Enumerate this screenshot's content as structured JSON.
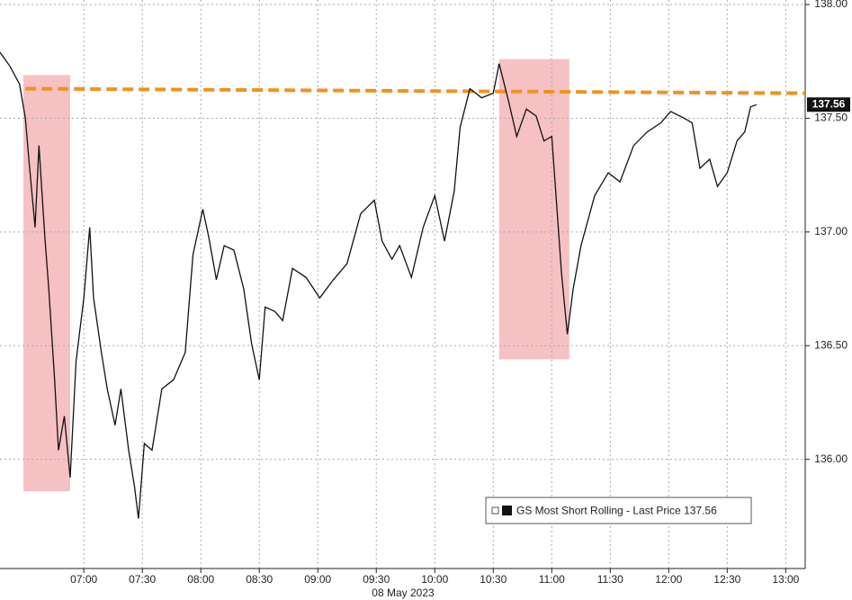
{
  "chart_data": {
    "type": "line",
    "xlabel": "08 May 2023",
    "x": [
      "06:17",
      "06:22",
      "06:27",
      "06:30",
      "06:32",
      "06:35",
      "06:37",
      "06:40",
      "06:42",
      "06:45",
      "06:47",
      "06:50",
      "06:53",
      "06:56",
      "07:00",
      "07:03",
      "07:05",
      "07:09",
      "07:12",
      "07:16",
      "07:19",
      "07:23",
      "07:26",
      "07:28",
      "07:31",
      "07:35",
      "07:40",
      "07:46",
      "07:52",
      "07:56",
      "08:01",
      "08:04",
      "08:08",
      "08:12",
      "08:17",
      "08:22",
      "08:26",
      "08:30",
      "08:33",
      "08:38",
      "08:42",
      "08:47",
      "08:54",
      "09:01",
      "09:08",
      "09:15",
      "09:22",
      "09:29",
      "09:33",
      "09:38",
      "09:42",
      "09:48",
      "09:54",
      "10:00",
      "10:05",
      "10:10",
      "10:13",
      "10:18",
      "10:24",
      "10:30",
      "10:33",
      "10:38",
      "10:42",
      "10:47",
      "10:52",
      "10:56",
      "11:00",
      "11:03",
      "11:05",
      "11:08",
      "11:11",
      "11:15",
      "11:22",
      "11:29",
      "11:35",
      "11:42",
      "11:49",
      "11:56",
      "12:01",
      "12:08",
      "12:12",
      "12:16",
      "12:21",
      "12:25",
      "12:30",
      "12:35",
      "12:39",
      "12:42",
      "12:45"
    ],
    "series": [
      {
        "name": "GS Most Short Rolling - Last Price 137.56",
        "color": "#111111",
        "values": [
          137.79,
          137.73,
          137.65,
          137.5,
          137.3,
          137.02,
          137.38,
          136.98,
          136.75,
          136.35,
          136.04,
          136.19,
          135.92,
          136.43,
          136.71,
          137.02,
          136.71,
          136.47,
          136.31,
          136.15,
          136.31,
          136.04,
          135.88,
          135.74,
          136.07,
          136.04,
          136.31,
          136.35,
          136.47,
          136.9,
          137.1,
          136.98,
          136.79,
          136.94,
          136.92,
          136.75,
          136.51,
          136.35,
          136.67,
          136.65,
          136.61,
          136.84,
          136.8,
          136.71,
          136.79,
          136.86,
          137.08,
          137.14,
          136.96,
          136.88,
          136.94,
          136.8,
          137.02,
          137.16,
          136.96,
          137.18,
          137.46,
          137.63,
          137.59,
          137.61,
          137.74,
          137.57,
          137.42,
          137.54,
          137.51,
          137.4,
          137.42,
          137.06,
          136.82,
          136.55,
          136.75,
          136.94,
          137.16,
          137.26,
          137.22,
          137.38,
          137.44,
          137.48,
          137.53,
          137.5,
          137.48,
          137.28,
          137.32,
          137.2,
          137.26,
          137.4,
          137.44,
          137.55,
          137.56
        ]
      }
    ],
    "reference_line": {
      "color": "#f0921e",
      "x": [
        "06:30",
        "13:10"
      ],
      "values": [
        137.63,
        137.61
      ]
    },
    "highlights": {
      "color": "#f4b6b8",
      "regions": [
        {
          "x": [
            "06:29",
            "06:53"
          ],
          "y": [
            135.86,
            137.69
          ]
        },
        {
          "x": [
            "10:33",
            "11:09"
          ],
          "y": [
            136.44,
            137.76
          ]
        }
      ]
    },
    "xlim": [
      "06:17",
      "13:10"
    ],
    "xticks": [
      "07:00",
      "07:30",
      "08:00",
      "08:30",
      "09:00",
      "09:30",
      "10:00",
      "10:30",
      "11:00",
      "11:30",
      "12:00",
      "12:30",
      "13:00"
    ],
    "ylim": [
      135.52,
      138.02
    ],
    "yticks": [
      {
        "value": 136,
        "label": "136.00"
      },
      {
        "value": 136.5,
        "label": "136.50"
      },
      {
        "value": 137,
        "label": "137.00"
      },
      {
        "value": 137.5,
        "label": "137.50"
      },
      {
        "value": 138,
        "label": "138.00"
      }
    ],
    "grid": true,
    "legend": "lower right"
  }
}
